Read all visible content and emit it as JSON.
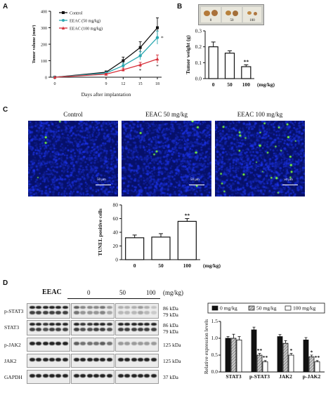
{
  "panels": {
    "a": "A",
    "b": "B",
    "c": "C",
    "d": "D"
  },
  "colors": {
    "control": "#111111",
    "eeac50": "#2aa7b0",
    "eeac100": "#d6303a",
    "fluor_bg": "#1020a8",
    "fluor_dot": "#7cff3a"
  },
  "chart_data": [
    {
      "id": "A",
      "type": "line",
      "xlabel": "Days after implantation",
      "ylabel": "Tumor volume (mm³)",
      "x": [
        0,
        9,
        12,
        15,
        18
      ],
      "ylim": [
        0,
        400
      ],
      "yticks": [
        0,
        100,
        200,
        300,
        400
      ],
      "series": [
        {
          "name": "Control",
          "values": [
            0,
            30,
            100,
            180,
            300
          ],
          "err": [
            0,
            8,
            22,
            35,
            60
          ],
          "color": "#111111",
          "marker": "square"
        },
        {
          "name": "EEAC (50 mg/kg)",
          "values": [
            0,
            25,
            70,
            130,
            240
          ],
          "err": [
            0,
            6,
            15,
            25,
            40
          ],
          "color": "#2aa7b0",
          "marker": "circle"
        },
        {
          "name": "EEAC (100 mg/kg)",
          "values": [
            0,
            18,
            45,
            75,
            110
          ],
          "err": [
            0,
            5,
            10,
            15,
            25
          ],
          "color": "#d6303a",
          "marker": "triangle"
        }
      ],
      "annotations": [
        {
          "x": 15,
          "text": "*"
        },
        {
          "x": 18,
          "text": "*"
        },
        {
          "x": 18,
          "text": "*",
          "series": "EEAC (50 mg/kg)"
        }
      ]
    },
    {
      "id": "B",
      "type": "bar",
      "categories": [
        "0",
        "50",
        "100"
      ],
      "values": [
        0.2,
        0.16,
        0.075
      ],
      "err": [
        0.03,
        0.015,
        0.012
      ],
      "ylabel": "Tumor weight (g)",
      "xlabel": "(mg/kg)",
      "ylim": [
        0,
        0.3
      ],
      "yticks": [
        0.0,
        0.1,
        0.2,
        0.3
      ],
      "yticklabels": [
        "0.0",
        "0.1",
        "0.2",
        "0.3"
      ],
      "annotations": [
        {
          "category": "100",
          "text": "**"
        }
      ]
    },
    {
      "id": "C",
      "type": "bar",
      "categories": [
        "0",
        "50",
        "100"
      ],
      "values": [
        32,
        33,
        56
      ],
      "err": [
        4,
        5,
        4
      ],
      "ylabel": "TUNEL positive cells",
      "xlabel": "(mg/kg)",
      "ylim": [
        0,
        80
      ],
      "yticks": [
        0,
        20,
        40,
        60,
        80
      ],
      "annotations": [
        {
          "category": "100",
          "text": "**"
        }
      ]
    },
    {
      "id": "D",
      "type": "bar",
      "categories": [
        "STAT3",
        "p-STAT3",
        "JAK2",
        "p-JAK2"
      ],
      "ylabel": "Relative expression levels",
      "ylim": [
        0,
        1.5
      ],
      "yticks": [
        0.0,
        0.5,
        1.0,
        1.5
      ],
      "yticklabels": [
        "0.0",
        "0.5",
        "1.0",
        "1.5"
      ],
      "series": [
        {
          "name": "0 mg/kg",
          "values": [
            1.0,
            1.25,
            1.05,
            0.95
          ],
          "err": [
            0.05,
            0.08,
            0.06,
            0.07
          ],
          "color": "#111111"
        },
        {
          "name": "50 mg/kg",
          "values": [
            1.0,
            0.5,
            0.85,
            0.45
          ],
          "err": [
            0.12,
            0.05,
            0.08,
            0.05
          ],
          "color": "#9a9a9a"
        },
        {
          "name": "100 mg/kg",
          "values": [
            0.95,
            0.3,
            0.5,
            0.3
          ],
          "err": [
            0.1,
            0.04,
            0.05,
            0.04
          ],
          "color": "#ffffff"
        }
      ],
      "annotations": [
        {
          "category": "p-STAT3",
          "series": "50 mg/kg",
          "text": "**"
        },
        {
          "category": "p-STAT3",
          "series": "100 mg/kg",
          "text": "**"
        },
        {
          "category": "JAK2",
          "series": "100 mg/kg",
          "text": "*"
        },
        {
          "category": "p-JAK2",
          "series": "50 mg/kg",
          "text": "*"
        },
        {
          "category": "p-JAK2",
          "series": "100 mg/kg",
          "text": "**"
        }
      ]
    }
  ],
  "photo": {
    "labels": [
      "0",
      "50",
      "100"
    ]
  },
  "micrographs": {
    "titles": [
      "Control",
      "EEAC 50 mg/kg",
      "EEAC 100 mg/kg"
    ],
    "scale": "50 μm"
  },
  "western": {
    "drug": "EEAC",
    "doses": [
      "0",
      "50",
      "100"
    ],
    "unit": "(mg/kg)",
    "rows": [
      {
        "name": "p-STAT3",
        "kda": [
          "86 kDa",
          "79 kDa"
        ]
      },
      {
        "name": "STAT3",
        "kda": [
          "86 kDa",
          "79 kDa"
        ]
      },
      {
        "name": "p-JAK2",
        "kda": [
          "125 kDa"
        ]
      },
      {
        "name": "JAK2",
        "kda": [
          "125 kDa"
        ]
      },
      {
        "name": "GAPDH",
        "kda": [
          "37 kDa"
        ]
      }
    ]
  }
}
